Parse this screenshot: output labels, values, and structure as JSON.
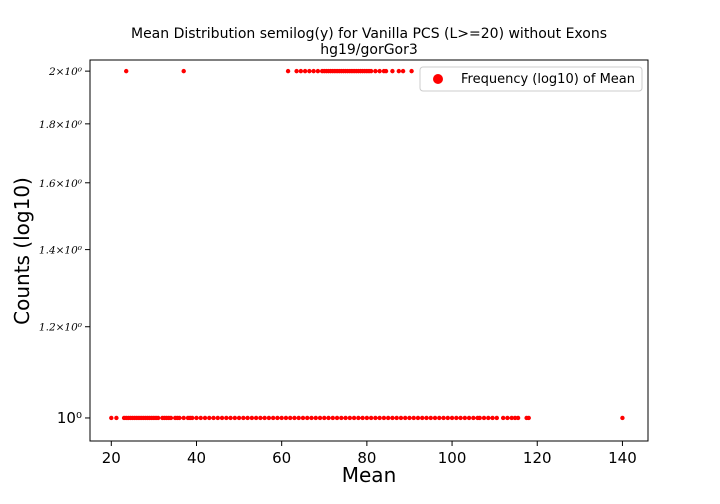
{
  "chart_data": {
    "type": "scatter",
    "title": "Mean Distribution semilog(y) for Vanilla PCS (L>=20) without Exons",
    "subtitle": "hg19/gorGor3",
    "xlabel": "Mean",
    "ylabel": "Counts (log10)",
    "xlim": [
      15,
      146
    ],
    "ylim": [
      0.955,
      2.045
    ],
    "y_scale": "log",
    "x_ticks": [
      20,
      40,
      60,
      80,
      100,
      120,
      140
    ],
    "y_ticks": [
      {
        "value": 1.0,
        "label": "10⁰"
      },
      {
        "value": 1.2,
        "label": "1.2×10⁰"
      },
      {
        "value": 1.4,
        "label": "1.4×10⁰"
      },
      {
        "value": 1.6,
        "label": "1.6×10⁰"
      },
      {
        "value": 1.8,
        "label": "1.8×10⁰"
      },
      {
        "value": 2.0,
        "label": "2×10⁰"
      }
    ],
    "grid": false,
    "legend_position": "top-right",
    "color": "#ff0000",
    "series": [
      {
        "name": "Frequency (log10) of Mean",
        "points": [
          {
            "x": 20.0,
            "y": 1
          },
          {
            "x": 21.2,
            "y": 1
          },
          {
            "x": 23.0,
            "y": 1
          },
          {
            "x": 23.5,
            "y": 1
          },
          {
            "x": 24.0,
            "y": 1
          },
          {
            "x": 24.5,
            "y": 1
          },
          {
            "x": 25.0,
            "y": 1
          },
          {
            "x": 25.5,
            "y": 1
          },
          {
            "x": 26.0,
            "y": 1
          },
          {
            "x": 26.5,
            "y": 1
          },
          {
            "x": 27.0,
            "y": 1
          },
          {
            "x": 27.5,
            "y": 1
          },
          {
            "x": 28.0,
            "y": 1
          },
          {
            "x": 28.5,
            "y": 1
          },
          {
            "x": 29.0,
            "y": 1
          },
          {
            "x": 29.5,
            "y": 1
          },
          {
            "x": 30.0,
            "y": 1
          },
          {
            "x": 30.5,
            "y": 1
          },
          {
            "x": 31.0,
            "y": 1
          },
          {
            "x": 32.0,
            "y": 1
          },
          {
            "x": 32.5,
            "y": 1
          },
          {
            "x": 33.0,
            "y": 1
          },
          {
            "x": 33.5,
            "y": 1
          },
          {
            "x": 34.0,
            "y": 1
          },
          {
            "x": 35.0,
            "y": 1
          },
          {
            "x": 35.5,
            "y": 1
          },
          {
            "x": 36.0,
            "y": 1
          },
          {
            "x": 37.0,
            "y": 1
          },
          {
            "x": 38.0,
            "y": 1
          },
          {
            "x": 38.5,
            "y": 1
          },
          {
            "x": 39.0,
            "y": 1
          },
          {
            "x": 40.0,
            "y": 1
          },
          {
            "x": 41.0,
            "y": 1
          },
          {
            "x": 42.0,
            "y": 1
          },
          {
            "x": 43.0,
            "y": 1
          },
          {
            "x": 44.0,
            "y": 1
          },
          {
            "x": 45.0,
            "y": 1
          },
          {
            "x": 46.0,
            "y": 1
          },
          {
            "x": 47.0,
            "y": 1
          },
          {
            "x": 48.0,
            "y": 1
          },
          {
            "x": 49.0,
            "y": 1
          },
          {
            "x": 50.0,
            "y": 1
          },
          {
            "x": 51.0,
            "y": 1
          },
          {
            "x": 52.0,
            "y": 1
          },
          {
            "x": 53.0,
            "y": 1
          },
          {
            "x": 54.0,
            "y": 1
          },
          {
            "x": 55.0,
            "y": 1
          },
          {
            "x": 56.0,
            "y": 1
          },
          {
            "x": 57.0,
            "y": 1
          },
          {
            "x": 58.0,
            "y": 1
          },
          {
            "x": 59.0,
            "y": 1
          },
          {
            "x": 60.0,
            "y": 1
          },
          {
            "x": 61.0,
            "y": 1
          },
          {
            "x": 62.0,
            "y": 1
          },
          {
            "x": 63.0,
            "y": 1
          },
          {
            "x": 64.0,
            "y": 1
          },
          {
            "x": 65.0,
            "y": 1
          },
          {
            "x": 66.0,
            "y": 1
          },
          {
            "x": 67.0,
            "y": 1
          },
          {
            "x": 68.0,
            "y": 1
          },
          {
            "x": 69.0,
            "y": 1
          },
          {
            "x": 70.0,
            "y": 1
          },
          {
            "x": 71.0,
            "y": 1
          },
          {
            "x": 72.0,
            "y": 1
          },
          {
            "x": 73.0,
            "y": 1
          },
          {
            "x": 74.0,
            "y": 1
          },
          {
            "x": 75.0,
            "y": 1
          },
          {
            "x": 76.0,
            "y": 1
          },
          {
            "x": 77.0,
            "y": 1
          },
          {
            "x": 78.0,
            "y": 1
          },
          {
            "x": 79.0,
            "y": 1
          },
          {
            "x": 80.0,
            "y": 1
          },
          {
            "x": 81.0,
            "y": 1
          },
          {
            "x": 82.0,
            "y": 1
          },
          {
            "x": 83.0,
            "y": 1
          },
          {
            "x": 84.0,
            "y": 1
          },
          {
            "x": 85.0,
            "y": 1
          },
          {
            "x": 86.0,
            "y": 1
          },
          {
            "x": 87.0,
            "y": 1
          },
          {
            "x": 88.0,
            "y": 1
          },
          {
            "x": 89.0,
            "y": 1
          },
          {
            "x": 90.0,
            "y": 1
          },
          {
            "x": 91.0,
            "y": 1
          },
          {
            "x": 92.0,
            "y": 1
          },
          {
            "x": 93.0,
            "y": 1
          },
          {
            "x": 94.0,
            "y": 1
          },
          {
            "x": 95.0,
            "y": 1
          },
          {
            "x": 96.0,
            "y": 1
          },
          {
            "x": 97.0,
            "y": 1
          },
          {
            "x": 98.0,
            "y": 1
          },
          {
            "x": 99.0,
            "y": 1
          },
          {
            "x": 100.0,
            "y": 1
          },
          {
            "x": 101.0,
            "y": 1
          },
          {
            "x": 102.0,
            "y": 1
          },
          {
            "x": 103.0,
            "y": 1
          },
          {
            "x": 104.0,
            "y": 1
          },
          {
            "x": 105.0,
            "y": 1
          },
          {
            "x": 106.0,
            "y": 1
          },
          {
            "x": 106.5,
            "y": 1
          },
          {
            "x": 107.5,
            "y": 1
          },
          {
            "x": 108.5,
            "y": 1
          },
          {
            "x": 109.5,
            "y": 1
          },
          {
            "x": 110.5,
            "y": 1
          },
          {
            "x": 112.0,
            "y": 1
          },
          {
            "x": 113.0,
            "y": 1
          },
          {
            "x": 114.0,
            "y": 1
          },
          {
            "x": 114.8,
            "y": 1
          },
          {
            "x": 115.5,
            "y": 1
          },
          {
            "x": 117.5,
            "y": 1
          },
          {
            "x": 118.0,
            "y": 1
          },
          {
            "x": 140.0,
            "y": 1
          },
          {
            "x": 23.5,
            "y": 2
          },
          {
            "x": 37.0,
            "y": 2
          },
          {
            "x": 61.5,
            "y": 2
          },
          {
            "x": 63.5,
            "y": 2
          },
          {
            "x": 64.5,
            "y": 2
          },
          {
            "x": 65.5,
            "y": 2
          },
          {
            "x": 66.5,
            "y": 2
          },
          {
            "x": 67.5,
            "y": 2
          },
          {
            "x": 68.5,
            "y": 2
          },
          {
            "x": 69.5,
            "y": 2
          },
          {
            "x": 70.0,
            "y": 2
          },
          {
            "x": 70.5,
            "y": 2
          },
          {
            "x": 71.0,
            "y": 2
          },
          {
            "x": 71.5,
            "y": 2
          },
          {
            "x": 72.0,
            "y": 2
          },
          {
            "x": 72.5,
            "y": 2
          },
          {
            "x": 73.0,
            "y": 2
          },
          {
            "x": 73.5,
            "y": 2
          },
          {
            "x": 74.0,
            "y": 2
          },
          {
            "x": 74.5,
            "y": 2
          },
          {
            "x": 75.0,
            "y": 2
          },
          {
            "x": 75.5,
            "y": 2
          },
          {
            "x": 76.0,
            "y": 2
          },
          {
            "x": 76.5,
            "y": 2
          },
          {
            "x": 77.0,
            "y": 2
          },
          {
            "x": 77.5,
            "y": 2
          },
          {
            "x": 78.0,
            "y": 2
          },
          {
            "x": 78.5,
            "y": 2
          },
          {
            "x": 79.0,
            "y": 2
          },
          {
            "x": 79.5,
            "y": 2
          },
          {
            "x": 80.0,
            "y": 2
          },
          {
            "x": 80.5,
            "y": 2
          },
          {
            "x": 81.0,
            "y": 2
          },
          {
            "x": 82.0,
            "y": 2
          },
          {
            "x": 83.0,
            "y": 2
          },
          {
            "x": 84.0,
            "y": 2
          },
          {
            "x": 84.5,
            "y": 2
          },
          {
            "x": 86.0,
            "y": 2
          },
          {
            "x": 87.5,
            "y": 2
          },
          {
            "x": 88.5,
            "y": 2
          },
          {
            "x": 90.5,
            "y": 2
          }
        ]
      }
    ]
  }
}
